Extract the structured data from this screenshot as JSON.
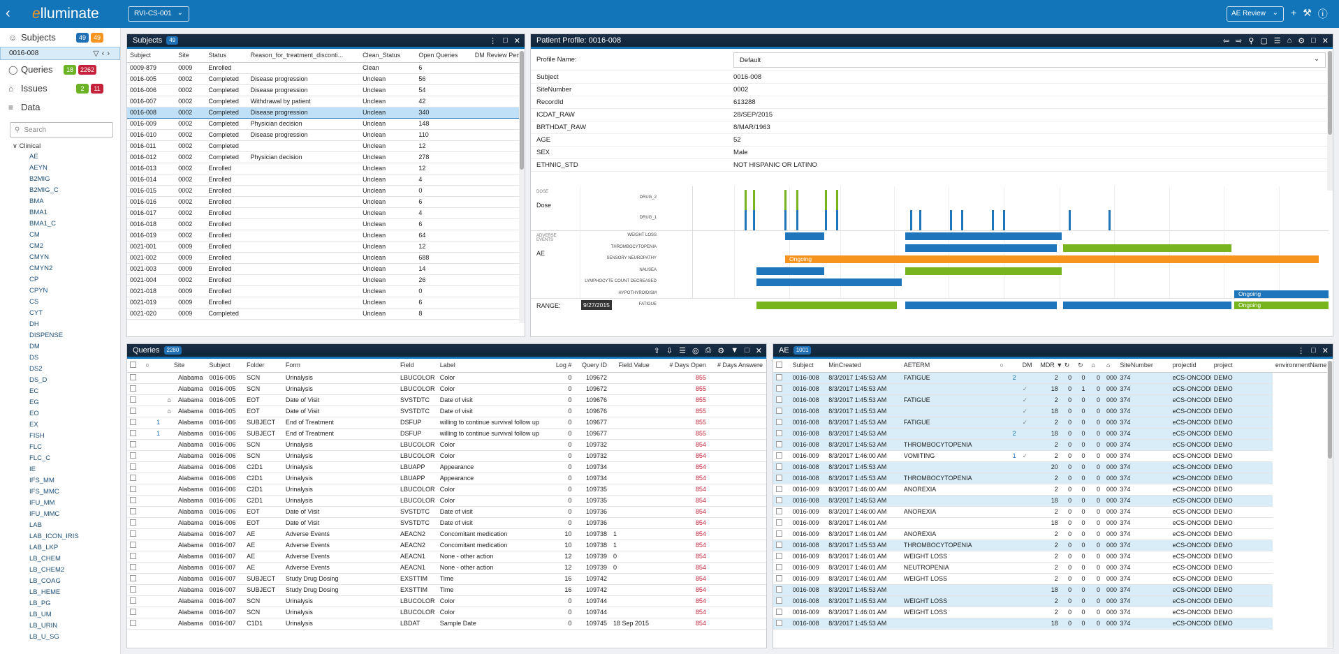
{
  "topbar": {
    "logo_prefix": "e",
    "logo_text": "lluminate",
    "study": "RVI-CS-001",
    "review": "AE Review"
  },
  "nav": {
    "subjects": {
      "label": "Subjects",
      "count1": "49",
      "count2": "49"
    },
    "current_subject": "0016-008",
    "queries": {
      "label": "Queries",
      "count1": "18",
      "count2": "2262"
    },
    "issues": {
      "label": "Issues",
      "count1": "2",
      "count2": "11"
    },
    "data": {
      "label": "Data"
    },
    "search_placeholder": "Search",
    "tree_group": "Clinical",
    "tree_items": [
      "AE",
      "AEYN",
      "B2MIG",
      "B2MIG_C",
      "BMA",
      "BMA1",
      "BMA1_C",
      "CM",
      "CM2",
      "CMYN",
      "CMYN2",
      "CP",
      "CPYN",
      "CS",
      "CYT",
      "DH",
      "DISPENSE",
      "DM",
      "DS",
      "DS2",
      "DS_D",
      "EC",
      "EG",
      "EO",
      "EX",
      "FISH",
      "FLC",
      "FLC_C",
      "IE",
      "IFS_MM",
      "IFS_MMC",
      "IFU_MM",
      "IFU_MMC",
      "LAB",
      "LAB_ICON_IRIS",
      "LAB_LKP",
      "LB_CHEM",
      "LB_CHEM2",
      "LB_COAG",
      "LB_HEME",
      "LB_PG",
      "LB_UM",
      "LB_URIN",
      "LB_U_SG"
    ]
  },
  "subjects_panel": {
    "title": "Subjects",
    "count": "49",
    "columns": [
      "Subject",
      "Site",
      "Status",
      "Reason_for_treatment_disconti...",
      "Clean_Status",
      "Open Queries",
      "DM Review Pendin"
    ],
    "rows": [
      [
        "0009-879",
        "0009",
        "Enrolled",
        "",
        "Clean",
        "6"
      ],
      [
        "0016-005",
        "0002",
        "Completed",
        "Disease progression",
        "Unclean",
        "56"
      ],
      [
        "0016-006",
        "0002",
        "Completed",
        "Disease progression",
        "Unclean",
        "54"
      ],
      [
        "0016-007",
        "0002",
        "Completed",
        "Withdrawal by patient",
        "Unclean",
        "42"
      ],
      [
        "0016-008",
        "0002",
        "Completed",
        "Disease progression",
        "Unclean",
        "340"
      ],
      [
        "0016-009",
        "0002",
        "Completed",
        "Physician decision",
        "Unclean",
        "148"
      ],
      [
        "0016-010",
        "0002",
        "Completed",
        "Disease progression",
        "Unclean",
        "110"
      ],
      [
        "0016-011",
        "0002",
        "Completed",
        "",
        "Unclean",
        "12"
      ],
      [
        "0016-012",
        "0002",
        "Completed",
        "Physician decision",
        "Unclean",
        "278"
      ],
      [
        "0016-013",
        "0002",
        "Enrolled",
        "",
        "Unclean",
        "12"
      ],
      [
        "0016-014",
        "0002",
        "Enrolled",
        "",
        "Unclean",
        "4"
      ],
      [
        "0016-015",
        "0002",
        "Enrolled",
        "",
        "Unclean",
        "0"
      ],
      [
        "0016-016",
        "0002",
        "Enrolled",
        "",
        "Unclean",
        "6"
      ],
      [
        "0016-017",
        "0002",
        "Enrolled",
        "",
        "Unclean",
        "4"
      ],
      [
        "0016-018",
        "0002",
        "Enrolled",
        "",
        "Unclean",
        "6"
      ],
      [
        "0016-019",
        "0002",
        "Enrolled",
        "",
        "Unclean",
        "64"
      ],
      [
        "0021-001",
        "0009",
        "Enrolled",
        "",
        "Unclean",
        "12"
      ],
      [
        "0021-002",
        "0009",
        "Enrolled",
        "",
        "Unclean",
        "688"
      ],
      [
        "0021-003",
        "0009",
        "Enrolled",
        "",
        "Unclean",
        "14"
      ],
      [
        "0021-004",
        "0002",
        "Enrolled",
        "",
        "Unclean",
        "26"
      ],
      [
        "0021-018",
        "0009",
        "Enrolled",
        "",
        "Unclean",
        "0"
      ],
      [
        "0021-019",
        "0009",
        "Enrolled",
        "",
        "Unclean",
        "6"
      ],
      [
        "0021-020",
        "0009",
        "Completed",
        "",
        "Unclean",
        "8"
      ]
    ]
  },
  "profile_panel": {
    "title": "Patient Profile: 0016-008",
    "profile_name_label": "Profile Name:",
    "profile_name_value": "Default",
    "fields": [
      [
        "Subject",
        "0016-008"
      ],
      [
        "SiteNumber",
        "0002"
      ],
      [
        "RecordId",
        "613288"
      ],
      [
        "ICDAT_RAW",
        "28/SEP/2015"
      ],
      [
        "BRTHDAT_RAW",
        "8/MAR/1963"
      ],
      [
        "AGE",
        "52"
      ],
      [
        "SEX",
        "Male"
      ],
      [
        "ETHNIC_STD",
        "NOT HISPANIC OR LATINO"
      ]
    ],
    "dose_section": "DOSE",
    "dose_label": "Dose",
    "drug2": "DRUG_2",
    "drug1": "DRUG_1",
    "ae_section": "ADVERSE EVENTS",
    "ae_label": "AE",
    "ae_terms": [
      "WEIGHT LOSS",
      "THROMBOCYTOPENIA",
      "SENSORY NEUROPATHY",
      "NAUSEA",
      "LYMPHOCYTE COUNT DECREASED",
      "HYPOTHYROIDISM",
      "FATIGUE"
    ],
    "ongoing": "Ongoing",
    "range_label": "RANGE:",
    "range_date": "9/27/2015",
    "colors": {
      "blue": "#1f75b9",
      "green": "#78b41e",
      "orange": "#f7941d"
    }
  },
  "queries_panel": {
    "title": "Queries",
    "count": "2280",
    "columns": [
      "",
      "",
      "Site",
      "Subject",
      "Folder",
      "Form",
      "Field",
      "Label",
      "Log #",
      "Query ID",
      "Field Value",
      "# Days Open",
      "# Days Answere"
    ],
    "rows": [
      [
        "",
        "Alabama",
        "0016-005",
        "SCN",
        "Urinalysis",
        "LBUCOLOR",
        "Color",
        "0",
        "109672",
        "",
        "855"
      ],
      [
        "",
        "Alabama",
        "0016-005",
        "SCN",
        "Urinalysis",
        "LBUCOLOR",
        "Color",
        "0",
        "109672",
        "",
        "855"
      ],
      [
        "tag",
        "Alabama",
        "0016-005",
        "EOT",
        "Date of Visit",
        "SVSTDTC",
        "Date of visit",
        "0",
        "109676",
        "",
        "855"
      ],
      [
        "tag",
        "Alabama",
        "0016-005",
        "EOT",
        "Date of Visit",
        "SVSTDTC",
        "Date of visit",
        "0",
        "109676",
        "",
        "855"
      ],
      [
        "1",
        "Alabama",
        "0016-006",
        "SUBJECT",
        "End of Treatment",
        "DSFUP",
        "willing to continue survival follow up",
        "0",
        "109677",
        "",
        "855"
      ],
      [
        "1",
        "Alabama",
        "0016-006",
        "SUBJECT",
        "End of Treatment",
        "DSFUP",
        "willing to continue survival follow up",
        "0",
        "109677",
        "",
        "855"
      ],
      [
        "",
        "Alabama",
        "0016-006",
        "SCN",
        "Urinalysis",
        "LBUCOLOR",
        "Color",
        "0",
        "109732",
        "",
        "854"
      ],
      [
        "",
        "Alabama",
        "0016-006",
        "SCN",
        "Urinalysis",
        "LBUCOLOR",
        "Color",
        "0",
        "109732",
        "",
        "854"
      ],
      [
        "",
        "Alabama",
        "0016-006",
        "C2D1",
        "Urinalysis",
        "LBUAPP",
        "Appearance",
        "0",
        "109734",
        "",
        "854"
      ],
      [
        "",
        "Alabama",
        "0016-006",
        "C2D1",
        "Urinalysis",
        "LBUAPP",
        "Appearance",
        "0",
        "109734",
        "",
        "854"
      ],
      [
        "",
        "Alabama",
        "0016-006",
        "C2D1",
        "Urinalysis",
        "LBUCOLOR",
        "Color",
        "0",
        "109735",
        "",
        "854"
      ],
      [
        "",
        "Alabama",
        "0016-006",
        "C2D1",
        "Urinalysis",
        "LBUCOLOR",
        "Color",
        "0",
        "109735",
        "",
        "854"
      ],
      [
        "",
        "Alabama",
        "0016-006",
        "EOT",
        "Date of Visit",
        "SVSTDTC",
        "Date of visit",
        "0",
        "109736",
        "",
        "854"
      ],
      [
        "",
        "Alabama",
        "0016-006",
        "EOT",
        "Date of Visit",
        "SVSTDTC",
        "Date of visit",
        "0",
        "109736",
        "",
        "854"
      ],
      [
        "",
        "Alabama",
        "0016-007",
        "AE",
        "Adverse Events",
        "AEACN2",
        "Concomitant medication",
        "10",
        "109738",
        "1",
        "854"
      ],
      [
        "",
        "Alabama",
        "0016-007",
        "AE",
        "Adverse Events",
        "AEACN2",
        "Concomitant medication",
        "10",
        "109738",
        "1",
        "854"
      ],
      [
        "",
        "Alabama",
        "0016-007",
        "AE",
        "Adverse Events",
        "AEACN1",
        "None - other action",
        "12",
        "109739",
        "0",
        "854"
      ],
      [
        "",
        "Alabama",
        "0016-007",
        "AE",
        "Adverse Events",
        "AEACN1",
        "None - other action",
        "12",
        "109739",
        "0",
        "854"
      ],
      [
        "",
        "Alabama",
        "0016-007",
        "SUBJECT",
        "Study Drug Dosing",
        "EXSTTIM",
        "Time",
        "16",
        "109742",
        "",
        "854"
      ],
      [
        "",
        "Alabama",
        "0016-007",
        "SUBJECT",
        "Study Drug Dosing",
        "EXSTTIM",
        "Time",
        "16",
        "109742",
        "",
        "854"
      ],
      [
        "",
        "Alabama",
        "0016-007",
        "SCN",
        "Urinalysis",
        "LBUCOLOR",
        "Color",
        "0",
        "109744",
        "",
        "854"
      ],
      [
        "",
        "Alabama",
        "0016-007",
        "SCN",
        "Urinalysis",
        "LBUCOLOR",
        "Color",
        "0",
        "109744",
        "",
        "854"
      ],
      [
        "",
        "Alabama",
        "0016-007",
        "C1D1",
        "Urinalysis",
        "LBDAT",
        "Sample Date",
        "0",
        "109745",
        "18 Sep 2015",
        "854"
      ]
    ]
  },
  "ae_panel": {
    "title": "AE",
    "count": "1001",
    "columns": [
      "",
      "Subject",
      "MinCreated",
      "AETERM",
      "",
      "DM",
      "MDR",
      "",
      "",
      "",
      "",
      "SiteNumber",
      "projectid",
      "project",
      "environmentName"
    ],
    "rows": [
      [
        "b",
        "0016-008",
        "8/3/2017 1:45:53 AM",
        "FATIGUE",
        "2",
        "",
        "2",
        "0",
        "0",
        "0",
        "0002",
        "374",
        "eCS-ONCODEMO",
        "DEMO"
      ],
      [
        "b",
        "0016-008",
        "8/3/2017 1:45:53 AM",
        "",
        "",
        "c",
        "18",
        "0",
        "1",
        "0",
        "0002",
        "374",
        "eCS-ONCODEMO",
        "DEMO"
      ],
      [
        "b",
        "0016-008",
        "8/3/2017 1:45:53 AM",
        "FATIGUE",
        "",
        "c",
        "2",
        "0",
        "0",
        "0",
        "0002",
        "374",
        "eCS-ONCODEMO",
        "DEMO"
      ],
      [
        "b",
        "0016-008",
        "8/3/2017 1:45:53 AM",
        "",
        "",
        "c",
        "18",
        "0",
        "0",
        "0",
        "0002",
        "374",
        "eCS-ONCODEMO",
        "DEMO"
      ],
      [
        "b",
        "0016-008",
        "8/3/2017 1:45:53 AM",
        "FATIGUE",
        "",
        "c",
        "2",
        "0",
        "0",
        "0",
        "0002",
        "374",
        "eCS-ONCODEMO",
        "DEMO"
      ],
      [
        "b",
        "0016-008",
        "8/3/2017 1:45:53 AM",
        "",
        "2",
        "",
        "18",
        "0",
        "0",
        "0",
        "0002",
        "374",
        "eCS-ONCODEMO",
        "DEMO"
      ],
      [
        "b",
        "0016-008",
        "8/3/2017 1:45:53 AM",
        "THROMBOCYTOPENIA",
        "",
        "",
        "2",
        "0",
        "0",
        "0",
        "0002",
        "374",
        "eCS-ONCODEMO",
        "DEMO"
      ],
      [
        "w",
        "0016-009",
        "8/3/2017 1:46:00 AM",
        "VOMITING",
        "1",
        "c",
        "2",
        "0",
        "0",
        "0",
        "0002",
        "374",
        "eCS-ONCODEMO",
        "DEMO"
      ],
      [
        "b",
        "0016-008",
        "8/3/2017 1:45:53 AM",
        "",
        "",
        "",
        "20",
        "0",
        "0",
        "0",
        "0002",
        "374",
        "eCS-ONCODEMO",
        "DEMO"
      ],
      [
        "b",
        "0016-008",
        "8/3/2017 1:45:53 AM",
        "THROMBOCYTOPENIA",
        "",
        "",
        "2",
        "0",
        "0",
        "0",
        "0002",
        "374",
        "eCS-ONCODEMO",
        "DEMO"
      ],
      [
        "w",
        "0016-009",
        "8/3/2017 1:46:00 AM",
        "ANOREXIA",
        "",
        "",
        "2",
        "0",
        "0",
        "0",
        "0002",
        "374",
        "eCS-ONCODEMO",
        "DEMO"
      ],
      [
        "b",
        "0016-008",
        "8/3/2017 1:45:53 AM",
        "",
        "",
        "",
        "18",
        "0",
        "0",
        "0",
        "0002",
        "374",
        "eCS-ONCODEMO",
        "DEMO"
      ],
      [
        "w",
        "0016-009",
        "8/3/2017 1:46:00 AM",
        "ANOREXIA",
        "",
        "",
        "2",
        "0",
        "0",
        "0",
        "0002",
        "374",
        "eCS-ONCODEMO",
        "DEMO"
      ],
      [
        "w",
        "0016-009",
        "8/3/2017 1:46:01 AM",
        "",
        "",
        "",
        "18",
        "0",
        "0",
        "0",
        "0002",
        "374",
        "eCS-ONCODEMO",
        "DEMO"
      ],
      [
        "w",
        "0016-009",
        "8/3/2017 1:46:01 AM",
        "ANOREXIA",
        "",
        "",
        "2",
        "0",
        "0",
        "0",
        "0002",
        "374",
        "eCS-ONCODEMO",
        "DEMO"
      ],
      [
        "b",
        "0016-008",
        "8/3/2017 1:45:53 AM",
        "THROMBOCYTOPENIA",
        "",
        "",
        "2",
        "0",
        "0",
        "0",
        "0002",
        "374",
        "eCS-ONCODEMO",
        "DEMO"
      ],
      [
        "w",
        "0016-009",
        "8/3/2017 1:46:01 AM",
        "WEIGHT LOSS",
        "",
        "",
        "2",
        "0",
        "0",
        "0",
        "0002",
        "374",
        "eCS-ONCODEMO",
        "DEMO"
      ],
      [
        "w",
        "0016-009",
        "8/3/2017 1:46:01 AM",
        "NEUTROPENIA",
        "",
        "",
        "2",
        "0",
        "0",
        "0",
        "0002",
        "374",
        "eCS-ONCODEMO",
        "DEMO"
      ],
      [
        "w",
        "0016-009",
        "8/3/2017 1:46:01 AM",
        "WEIGHT LOSS",
        "",
        "",
        "2",
        "0",
        "0",
        "0",
        "0002",
        "374",
        "eCS-ONCODEMO",
        "DEMO"
      ],
      [
        "b",
        "0016-008",
        "8/3/2017 1:45:53 AM",
        "",
        "",
        "",
        "18",
        "0",
        "0",
        "0",
        "0002",
        "374",
        "eCS-ONCODEMO",
        "DEMO"
      ],
      [
        "b",
        "0016-008",
        "8/3/2017 1:45:53 AM",
        "WEIGHT LOSS",
        "",
        "",
        "2",
        "0",
        "0",
        "0",
        "0002",
        "374",
        "eCS-ONCODEMO",
        "DEMO"
      ],
      [
        "w",
        "0016-009",
        "8/3/2017 1:46:01 AM",
        "WEIGHT LOSS",
        "",
        "",
        "2",
        "0",
        "0",
        "0",
        "0002",
        "374",
        "eCS-ONCODEMO",
        "DEMO"
      ],
      [
        "b",
        "0016-008",
        "8/3/2017 1:45:53 AM",
        "",
        "",
        "",
        "18",
        "0",
        "0",
        "0",
        "0002",
        "374",
        "eCS-ONCODEMO",
        "DEMO"
      ]
    ]
  }
}
